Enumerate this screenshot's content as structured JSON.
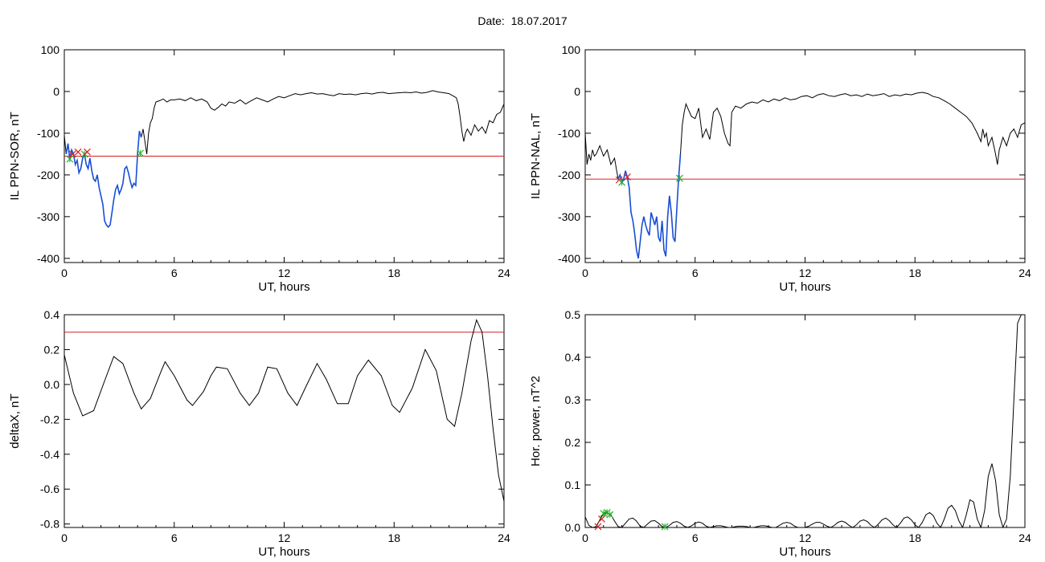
{
  "page": {
    "date_label": "Date:",
    "date_value": "18.07.2017"
  },
  "colors": {
    "data_line": "#000000",
    "threshold": "#d62020",
    "highlight": "#1a4fd6",
    "marker_start": "#22b022",
    "marker_end": "#d62020"
  },
  "chart_data": [
    {
      "id": "il-sor",
      "type": "line",
      "ylabel": "IL PPN-SOR, nT",
      "xlabel": "UT, hours",
      "xlim": [
        0,
        24
      ],
      "ylim": [
        -410,
        100
      ],
      "xticks": [
        0,
        6,
        12,
        18,
        24
      ],
      "yticks": [
        100,
        0,
        -100,
        -200,
        -300,
        -400
      ],
      "threshold": -155,
      "highlight_range": [
        0.1,
        4.2
      ],
      "markers": [
        {
          "x": 0.3,
          "y": -162,
          "kind": "start"
        },
        {
          "x": 0.45,
          "y": -150,
          "kind": "end"
        },
        {
          "x": 0.75,
          "y": -145,
          "kind": "end"
        },
        {
          "x": 1.1,
          "y": -150,
          "kind": "start"
        },
        {
          "x": 1.25,
          "y": -145,
          "kind": "end"
        },
        {
          "x": 4.15,
          "y": -148,
          "kind": "start"
        }
      ],
      "series": [
        {
          "x": [
            0,
            0.1,
            0.2,
            0.3,
            0.4,
            0.5,
            0.6,
            0.7,
            0.8,
            0.9,
            1.0,
            1.1,
            1.2,
            1.3,
            1.4,
            1.5,
            1.6,
            1.7,
            1.8,
            1.9,
            2.0,
            2.1,
            2.2,
            2.3,
            2.4,
            2.5,
            2.6,
            2.7,
            2.8,
            2.9,
            3.0,
            3.1,
            3.2,
            3.3,
            3.4,
            3.5,
            3.6,
            3.7,
            3.8,
            3.9,
            4.0,
            4.1,
            4.2,
            4.3,
            4.4,
            4.5,
            4.6,
            4.7,
            4.8,
            4.9,
            5.0,
            5.2,
            5.4,
            5.6,
            5.8,
            6.0,
            6.3,
            6.6,
            6.9,
            7.2,
            7.5,
            7.8,
            8.0,
            8.2,
            8.4,
            8.6,
            8.8,
            9.0,
            9.3,
            9.6,
            9.9,
            10.2,
            10.5,
            10.8,
            11.1,
            11.4,
            11.7,
            12.0,
            12.3,
            12.6,
            12.9,
            13.2,
            13.5,
            13.8,
            14.1,
            14.4,
            14.7,
            15.0,
            15.3,
            15.6,
            15.9,
            16.2,
            16.5,
            16.8,
            17.1,
            17.4,
            17.7,
            18.0,
            18.3,
            18.6,
            18.9,
            19.2,
            19.5,
            19.8,
            20.1,
            20.4,
            20.7,
            21.0,
            21.2,
            21.4,
            21.5,
            21.6,
            21.7,
            21.8,
            21.9,
            22.0,
            22.2,
            22.4,
            22.6,
            22.8,
            23.0,
            23.2,
            23.4,
            23.6,
            23.8,
            24.0
          ],
          "y": [
            -105,
            -150,
            -125,
            -162,
            -140,
            -150,
            -175,
            -165,
            -195,
            -185,
            -160,
            -150,
            -175,
            -185,
            -160,
            -190,
            -210,
            -215,
            -200,
            -230,
            -250,
            -270,
            -310,
            -320,
            -325,
            -320,
            -290,
            -260,
            -235,
            -225,
            -245,
            -235,
            -220,
            -185,
            -180,
            -195,
            -215,
            -230,
            -220,
            -225,
            -148,
            -95,
            -110,
            -90,
            -120,
            -150,
            -100,
            -75,
            -65,
            -40,
            -25,
            -22,
            -18,
            -25,
            -20,
            -20,
            -18,
            -22,
            -15,
            -22,
            -18,
            -25,
            -40,
            -45,
            -38,
            -30,
            -35,
            -25,
            -28,
            -20,
            -30,
            -22,
            -15,
            -20,
            -25,
            -18,
            -12,
            -15,
            -10,
            -5,
            -8,
            -5,
            -3,
            -6,
            -5,
            -8,
            -10,
            -5,
            -7,
            -6,
            -8,
            -5,
            -4,
            -6,
            -3,
            -2,
            -5,
            -4,
            -3,
            -2,
            -3,
            -1,
            -4,
            -2,
            2,
            -1,
            -3,
            -5,
            -10,
            -15,
            -30,
            -60,
            -95,
            -120,
            -100,
            -90,
            -105,
            -80,
            -95,
            -85,
            -100,
            -70,
            -75,
            -55,
            -50,
            -30
          ]
        }
      ]
    },
    {
      "id": "il-nal",
      "type": "line",
      "ylabel": "IL PPN-NAL, nT",
      "xlabel": "UT, hours",
      "xlim": [
        0,
        24
      ],
      "ylim": [
        -410,
        100
      ],
      "xticks": [
        0,
        6,
        12,
        18,
        24
      ],
      "yticks": [
        100,
        0,
        -100,
        -200,
        -300,
        -400
      ],
      "threshold": -210,
      "highlight_range": [
        1.8,
        5.2
      ],
      "markers": [
        {
          "x": 1.85,
          "y": -212,
          "kind": "end"
        },
        {
          "x": 2.0,
          "y": -218,
          "kind": "start"
        },
        {
          "x": 2.3,
          "y": -205,
          "kind": "end"
        },
        {
          "x": 5.15,
          "y": -208,
          "kind": "start"
        }
      ],
      "series": [
        {
          "x": [
            0,
            0.1,
            0.2,
            0.3,
            0.4,
            0.5,
            0.6,
            0.8,
            1.0,
            1.2,
            1.4,
            1.6,
            1.7,
            1.8,
            1.9,
            2.0,
            2.1,
            2.2,
            2.3,
            2.4,
            2.5,
            2.6,
            2.7,
            2.8,
            2.9,
            3.0,
            3.1,
            3.2,
            3.3,
            3.4,
            3.5,
            3.6,
            3.7,
            3.8,
            3.9,
            4.0,
            4.1,
            4.2,
            4.3,
            4.4,
            4.5,
            4.6,
            4.7,
            4.8,
            4.9,
            5.0,
            5.1,
            5.2,
            5.3,
            5.4,
            5.5,
            5.6,
            5.8,
            6.0,
            6.2,
            6.4,
            6.6,
            6.8,
            7.0,
            7.2,
            7.4,
            7.6,
            7.8,
            7.9,
            8.0,
            8.2,
            8.5,
            8.8,
            9.1,
            9.4,
            9.7,
            10.0,
            10.3,
            10.6,
            10.9,
            11.2,
            11.5,
            11.8,
            12.1,
            12.4,
            12.7,
            13.0,
            13.3,
            13.6,
            13.9,
            14.2,
            14.5,
            14.8,
            15.1,
            15.4,
            15.7,
            16.0,
            16.3,
            16.6,
            16.9,
            17.2,
            17.5,
            17.8,
            18.1,
            18.4,
            18.7,
            19.0,
            19.3,
            19.6,
            19.9,
            20.2,
            20.5,
            20.8,
            21.1,
            21.4,
            21.6,
            21.7,
            21.8,
            21.9,
            22.0,
            22.2,
            22.4,
            22.5,
            22.6,
            22.8,
            23.0,
            23.2,
            23.4,
            23.6,
            23.8,
            24.0
          ],
          "y": [
            -100,
            -175,
            -150,
            -165,
            -140,
            -155,
            -150,
            -130,
            -155,
            -140,
            -175,
            -160,
            -185,
            -210,
            -200,
            -215,
            -210,
            -190,
            -205,
            -230,
            -290,
            -310,
            -340,
            -380,
            -400,
            -360,
            -320,
            -300,
            -320,
            -335,
            -345,
            -290,
            -305,
            -320,
            -300,
            -350,
            -360,
            -310,
            -380,
            -395,
            -300,
            -250,
            -290,
            -350,
            -360,
            -280,
            -208,
            -150,
            -80,
            -50,
            -30,
            -40,
            -60,
            -65,
            -40,
            -110,
            -90,
            -115,
            -50,
            -40,
            -60,
            -100,
            -125,
            -130,
            -50,
            -35,
            -40,
            -30,
            -25,
            -28,
            -20,
            -25,
            -18,
            -22,
            -15,
            -20,
            -18,
            -12,
            -10,
            -15,
            -8,
            -5,
            -10,
            -12,
            -8,
            -5,
            -10,
            -8,
            -12,
            -6,
            -10,
            -8,
            -5,
            -12,
            -8,
            -10,
            -6,
            -8,
            -4,
            -2,
            -5,
            -12,
            -15,
            -22,
            -30,
            -40,
            -50,
            -60,
            -75,
            -100,
            -120,
            -90,
            -110,
            -100,
            -130,
            -110,
            -150,
            -175,
            -140,
            -110,
            -130,
            -100,
            -90,
            -110,
            -80,
            -75
          ]
        }
      ]
    },
    {
      "id": "deltax",
      "type": "line",
      "ylabel": "deltaX, nT",
      "xlabel": "UT, hours",
      "xlim": [
        0,
        24
      ],
      "ylim": [
        -0.82,
        0.4
      ],
      "xticks": [
        0,
        6,
        12,
        18,
        24
      ],
      "yticks": [
        0.4,
        0.2,
        0.0,
        -0.2,
        -0.4,
        -0.6,
        -0.8
      ],
      "ytick_labels": [
        "0.4",
        "0.2",
        "0.0",
        "-0.2",
        "-0.4",
        "-0.6",
        "-0.8"
      ],
      "threshold": 0.3,
      "series": [
        {
          "x": [
            0,
            0.5,
            1.0,
            1.6,
            2.2,
            2.7,
            3.2,
            3.8,
            4.2,
            4.7,
            5.3,
            5.5,
            6.0,
            6.7,
            7.0,
            7.6,
            8.0,
            8.3,
            8.9,
            9.6,
            10.1,
            10.6,
            11.1,
            11.6,
            12.2,
            12.7,
            13.2,
            13.8,
            14.3,
            14.9,
            15.5,
            16.0,
            16.6,
            17.3,
            17.9,
            18.3,
            19.0,
            19.7,
            20.3,
            20.9,
            21.3,
            21.7,
            22.2,
            22.5,
            22.8,
            23.1,
            23.4,
            23.7,
            24.0
          ],
          "y": [
            0.17,
            -0.05,
            -0.18,
            -0.15,
            0.02,
            0.16,
            0.12,
            -0.05,
            -0.14,
            -0.08,
            0.08,
            0.13,
            0.05,
            -0.09,
            -0.12,
            -0.04,
            0.05,
            0.1,
            0.09,
            -0.05,
            -0.12,
            -0.05,
            0.1,
            0.09,
            -0.05,
            -0.12,
            -0.01,
            0.12,
            0.03,
            -0.11,
            -0.11,
            0.05,
            0.14,
            0.05,
            -0.12,
            -0.16,
            -0.02,
            0.2,
            0.08,
            -0.2,
            -0.24,
            -0.05,
            0.25,
            0.37,
            0.3,
            0.05,
            -0.25,
            -0.52,
            -0.67
          ]
        }
      ]
    },
    {
      "id": "hor-power",
      "type": "line",
      "ylabel": "Hor. power, nT^2",
      "xlabel": "UT, hours",
      "xlim": [
        0,
        24
      ],
      "ylim": [
        0,
        0.5
      ],
      "xticks": [
        0,
        6,
        12,
        18,
        24
      ],
      "yticks": [
        0.5,
        0.4,
        0.3,
        0.2,
        0.1,
        0.0
      ],
      "ytick_labels": [
        "0.5",
        "0.4",
        "0.3",
        "0.2",
        "0.1",
        "0.0"
      ],
      "markers": [
        {
          "x": 0.7,
          "y": 0.002,
          "kind": "end"
        },
        {
          "x": 0.9,
          "y": 0.02,
          "kind": "end"
        },
        {
          "x": 1.0,
          "y": 0.033,
          "kind": "start"
        },
        {
          "x": 1.2,
          "y": 0.035,
          "kind": "start"
        },
        {
          "x": 1.35,
          "y": 0.03,
          "kind": "start"
        },
        {
          "x": 4.35,
          "y": 0.002,
          "kind": "start"
        }
      ],
      "series": [
        {
          "x": [
            0,
            0.2,
            0.4,
            0.6,
            0.8,
            1.0,
            1.2,
            1.4,
            1.6,
            1.8,
            2.0,
            2.2,
            2.4,
            2.6,
            2.8,
            3.0,
            3.2,
            3.4,
            3.6,
            3.8,
            4.0,
            4.2,
            4.4,
            4.6,
            4.8,
            5.0,
            5.2,
            5.4,
            5.6,
            5.8,
            6.0,
            6.2,
            6.4,
            6.6,
            6.8,
            7.0,
            7.2,
            7.4,
            7.6,
            7.8,
            8.0,
            8.2,
            8.4,
            8.6,
            8.8,
            9.0,
            9.2,
            9.4,
            9.6,
            9.8,
            10.0,
            10.2,
            10.4,
            10.6,
            10.8,
            11.0,
            11.2,
            11.4,
            11.6,
            11.8,
            12.0,
            12.2,
            12.4,
            12.6,
            12.8,
            13.0,
            13.2,
            13.4,
            13.6,
            13.8,
            14.0,
            14.2,
            14.4,
            14.6,
            14.8,
            15.0,
            15.2,
            15.4,
            15.6,
            15.8,
            16.0,
            16.2,
            16.4,
            16.6,
            16.8,
            17.0,
            17.2,
            17.4,
            17.6,
            17.8,
            18.0,
            18.2,
            18.4,
            18.6,
            18.8,
            19.0,
            19.2,
            19.4,
            19.6,
            19.8,
            20.0,
            20.2,
            20.4,
            20.6,
            20.8,
            21.0,
            21.2,
            21.4,
            21.6,
            21.8,
            22.0,
            22.2,
            22.4,
            22.6,
            22.8,
            23.0,
            23.2,
            23.4,
            23.6,
            23.8,
            24.0
          ],
          "y": [
            0.025,
            0.005,
            0.0,
            0.002,
            0.018,
            0.033,
            0.035,
            0.03,
            0.015,
            0.002,
            0.0,
            0.01,
            0.02,
            0.022,
            0.015,
            0.003,
            0.0,
            0.008,
            0.015,
            0.016,
            0.01,
            0.002,
            0.0,
            0.005,
            0.012,
            0.014,
            0.01,
            0.003,
            0.0,
            0.004,
            0.01,
            0.013,
            0.01,
            0.003,
            0.0,
            0.002,
            0.004,
            0.004,
            0.002,
            0.0,
            0.0,
            0.002,
            0.003,
            0.003,
            0.002,
            0.0,
            0.0,
            0.002,
            0.004,
            0.004,
            0.002,
            0.0,
            0.0,
            0.005,
            0.01,
            0.012,
            0.01,
            0.004,
            0.0,
            0.0,
            0.0,
            0.003,
            0.008,
            0.012,
            0.012,
            0.008,
            0.003,
            0.0,
            0.005,
            0.012,
            0.015,
            0.012,
            0.005,
            0.0,
            0.006,
            0.015,
            0.018,
            0.014,
            0.005,
            0.0,
            0.008,
            0.018,
            0.022,
            0.016,
            0.006,
            0.0,
            0.01,
            0.022,
            0.025,
            0.018,
            0.006,
            0.0,
            0.012,
            0.03,
            0.035,
            0.028,
            0.01,
            0.0,
            0.02,
            0.045,
            0.052,
            0.04,
            0.015,
            0.0,
            0.03,
            0.065,
            0.06,
            0.02,
            0.0,
            0.04,
            0.12,
            0.15,
            0.11,
            0.03,
            0.0,
            0.02,
            0.12,
            0.3,
            0.48,
            0.5,
            0.5
          ]
        }
      ]
    }
  ]
}
